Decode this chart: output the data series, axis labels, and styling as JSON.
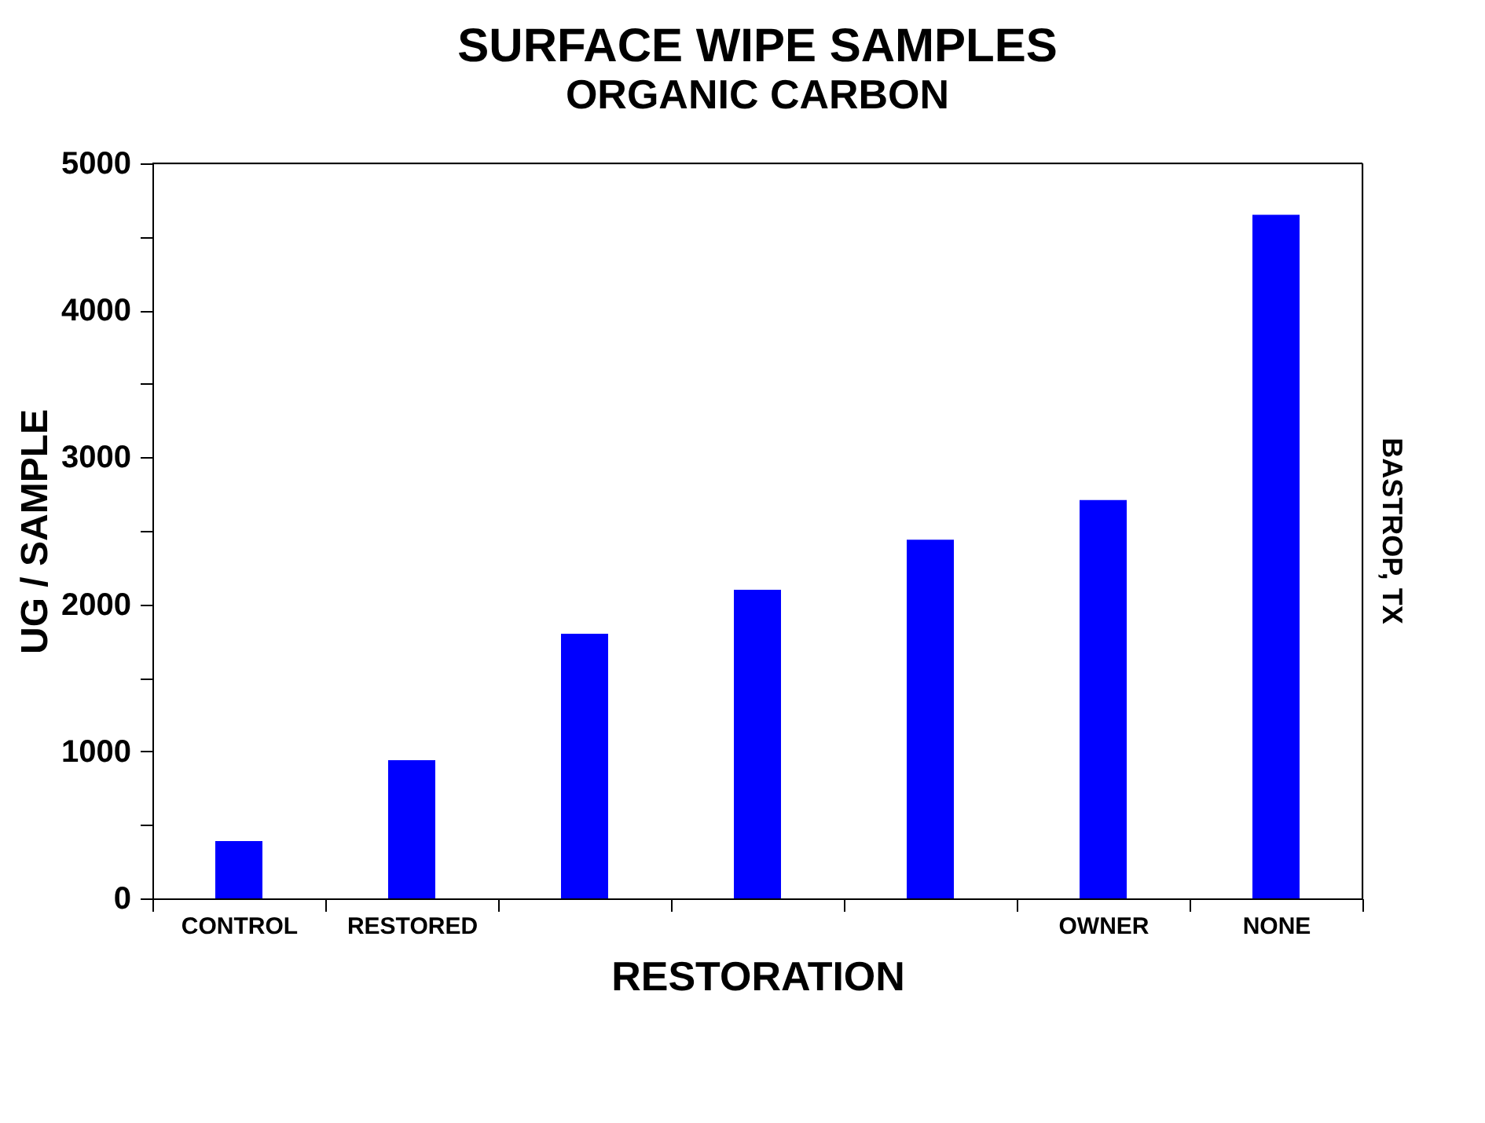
{
  "chart_data": {
    "type": "bar",
    "title": "SURFACE WIPE SAMPLES",
    "subtitle": "ORGANIC CARBON",
    "xlabel": "RESTORATION",
    "ylabel": "UG / SAMPLE",
    "categories": [
      "CONTROL",
      "RESTORED",
      null,
      null,
      null,
      "OWNER",
      "NONE"
    ],
    "values": [
      390,
      940,
      1800,
      2100,
      2440,
      2710,
      4650
    ],
    "color": "#0000ff",
    "ylim": [
      0,
      5000
    ],
    "yticks": [
      0,
      {
        "value": 500,
        "label": null
      },
      1000,
      {
        "value": 1500,
        "label": null
      },
      2000,
      {
        "value": 2500,
        "label": null
      },
      3000,
      {
        "value": 3500,
        "label": null
      },
      4000,
      {
        "value": 4500,
        "label": null
      },
      5000
    ],
    "annotations": [
      "BASTROP, TX"
    ]
  }
}
